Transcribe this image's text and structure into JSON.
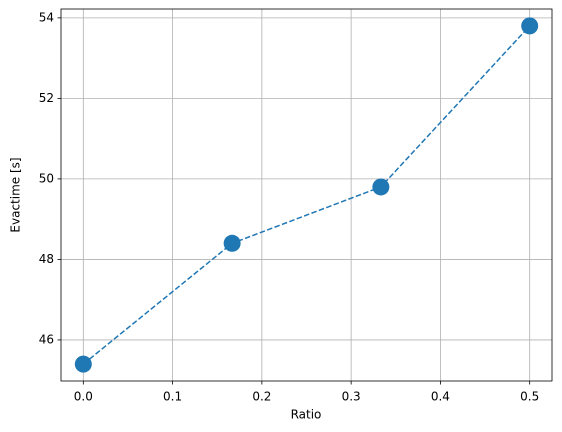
{
  "chart_data": {
    "type": "line",
    "x_label": "Ratio",
    "y_label": "Evactime [s]",
    "x": [
      0,
      0.1667,
      0.3333,
      0.5
    ],
    "series": [
      {
        "color": "#1f77b4",
        "values": [
          45.4,
          48.4,
          49.8,
          53.8
        ]
      }
    ],
    "xlim": [
      -0.025,
      0.525
    ],
    "ylim": [
      44.98,
      54.22
    ],
    "xticks": [
      {
        "value": 0,
        "label": "0.0"
      },
      0.1,
      0.2,
      0.3,
      0.4,
      0.5
    ],
    "yticks": [
      46,
      48,
      50,
      52,
      54
    ],
    "grid": true,
    "line_style": "dashed",
    "marker": "circle"
  }
}
